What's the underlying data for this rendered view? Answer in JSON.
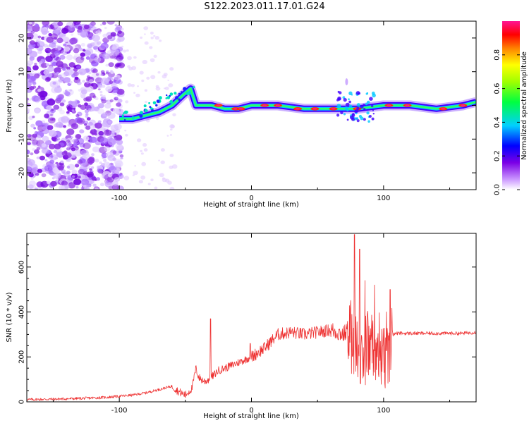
{
  "title": "S122.2023.011.17.01.G24",
  "chart_data": [
    {
      "type": "heatmap",
      "xlabel": "Height of straight line (km)",
      "ylabel": "Frequency (Hz)",
      "xlim": [
        -170,
        170
      ],
      "ylim": [
        -25,
        25
      ],
      "xticks": [
        -100,
        0,
        100
      ],
      "xtick_labels": [
        "-100",
        "0",
        "100"
      ],
      "yticks": [
        -20,
        -10,
        0,
        10,
        20
      ],
      "ytick_labels": [
        "-20",
        "-10",
        "0",
        "10",
        "20"
      ],
      "ridge": [
        {
          "x": -100,
          "y": -4
        },
        {
          "x": -90,
          "y": -4
        },
        {
          "x": -80,
          "y": -3
        },
        {
          "x": -70,
          "y": -2
        },
        {
          "x": -60,
          "y": 0
        },
        {
          "x": -52,
          "y": 3
        },
        {
          "x": -46,
          "y": 5
        },
        {
          "x": -42,
          "y": 0
        },
        {
          "x": -30,
          "y": 0
        },
        {
          "x": -20,
          "y": -1
        },
        {
          "x": -10,
          "y": -1
        },
        {
          "x": 0,
          "y": 0
        },
        {
          "x": 20,
          "y": 0
        },
        {
          "x": 40,
          "y": -1
        },
        {
          "x": 60,
          "y": -1
        },
        {
          "x": 80,
          "y": -1
        },
        {
          "x": 100,
          "y": 0
        },
        {
          "x": 120,
          "y": 0
        },
        {
          "x": 140,
          "y": -1
        },
        {
          "x": 160,
          "y": 0
        },
        {
          "x": 170,
          "y": 1
        }
      ],
      "colorbar": {
        "label": "Normalized spectral amplitude",
        "range": [
          0,
          1
        ],
        "ticks": [
          0.0,
          0.2,
          0.4,
          0.6,
          0.8
        ],
        "tick_labels": [
          "0.0",
          "0.2",
          "0.4",
          "0.6",
          "0.8"
        ],
        "colors": [
          "#ffffff",
          "#8a2be2",
          "#0000ff",
          "#00d0ff",
          "#00ff00",
          "#ffff00",
          "#ff8000",
          "#ff0000",
          "#ff1493"
        ]
      }
    },
    {
      "type": "line",
      "xlabel": "Height of straight line (km)",
      "ylabel": "SNR (10 * v/v)",
      "xlim": [
        -170,
        170
      ],
      "ylim": [
        0,
        750
      ],
      "xticks": [
        -100,
        0,
        100
      ],
      "xtick_labels": [
        "-100",
        "0",
        "100"
      ],
      "yticks": [
        0,
        200,
        400,
        600
      ],
      "ytick_labels": [
        "0",
        "200",
        "400",
        "600"
      ],
      "color": "#ee3333",
      "series": [
        {
          "x": [
            -170,
            -150,
            -130,
            -110,
            -100,
            -90,
            -80,
            -70,
            -60,
            -55,
            -50,
            -45,
            -42,
            -40,
            -38,
            -35,
            -30,
            -25,
            -20,
            -10,
            0,
            10,
            20,
            30,
            40,
            50,
            60,
            70,
            75,
            80,
            85,
            90,
            95,
            100,
            105,
            107,
            110,
            120,
            130,
            140,
            150,
            160,
            170
          ],
          "values": [
            10,
            12,
            15,
            20,
            25,
            30,
            40,
            55,
            70,
            45,
            30,
            60,
            150,
            110,
            100,
            90,
            110,
            140,
            150,
            175,
            200,
            240,
            300,
            310,
            300,
            310,
            320,
            300,
            340,
            280,
            250,
            260,
            270,
            280,
            260,
            300,
            305,
            305,
            305,
            305,
            305,
            305,
            310
          ]
        }
      ]
    }
  ]
}
